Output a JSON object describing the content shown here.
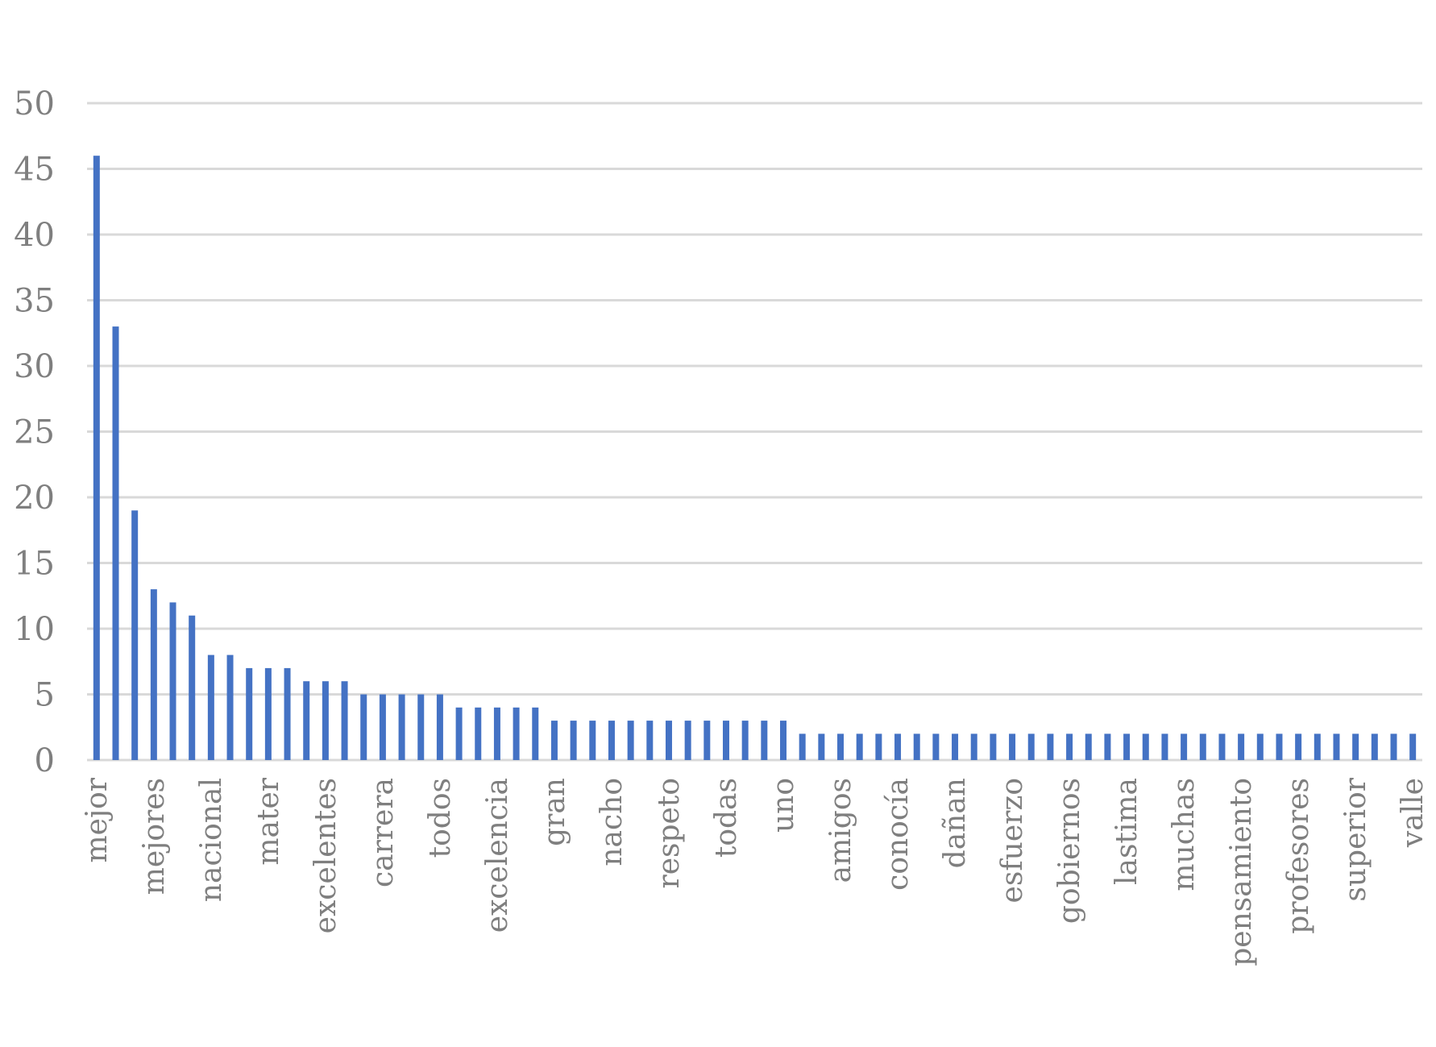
{
  "chart_data": {
    "type": "bar",
    "title": "",
    "xlabel": "",
    "ylabel": "",
    "ylim": [
      0,
      50
    ],
    "yticks": [
      0,
      5,
      10,
      15,
      20,
      25,
      30,
      35,
      40,
      45,
      50
    ],
    "grid": true,
    "legend": "none",
    "colors": {
      "bar": "#4472C4",
      "grid": "#d9d9d9",
      "tick_text": "#7f7f7f"
    },
    "values": [
      46,
      33,
      19,
      13,
      12,
      11,
      8,
      8,
      7,
      7,
      7,
      6,
      6,
      6,
      5,
      5,
      5,
      5,
      5,
      4,
      4,
      4,
      4,
      4,
      3,
      3,
      3,
      3,
      3,
      3,
      3,
      3,
      3,
      3,
      3,
      3,
      3,
      2,
      2,
      2,
      2,
      2,
      2,
      2,
      2,
      2,
      2,
      2,
      2,
      2,
      2,
      2,
      2,
      2,
      2,
      2,
      2,
      2,
      2,
      2,
      2,
      2,
      2,
      2,
      2,
      2,
      2,
      2,
      2,
      2
    ],
    "tick_labels": [
      {
        "index": 0,
        "text": "mejor"
      },
      {
        "index": 3,
        "text": "mejores"
      },
      {
        "index": 6,
        "text": "nacional"
      },
      {
        "index": 9,
        "text": "mater"
      },
      {
        "index": 12,
        "text": "excelentes"
      },
      {
        "index": 15,
        "text": "carrera"
      },
      {
        "index": 18,
        "text": "todos"
      },
      {
        "index": 21,
        "text": "excelencia"
      },
      {
        "index": 24,
        "text": "gran"
      },
      {
        "index": 27,
        "text": "nacho"
      },
      {
        "index": 30,
        "text": "respeto"
      },
      {
        "index": 33,
        "text": "todas"
      },
      {
        "index": 36,
        "text": "uno"
      },
      {
        "index": 39,
        "text": "amigos"
      },
      {
        "index": 42,
        "text": "conocía"
      },
      {
        "index": 45,
        "text": "dañan"
      },
      {
        "index": 48,
        "text": "esfuerzo"
      },
      {
        "index": 51,
        "text": "gobiernos"
      },
      {
        "index": 54,
        "text": "lastima"
      },
      {
        "index": 57,
        "text": "muchas"
      },
      {
        "index": 60,
        "text": "pensamiento"
      },
      {
        "index": 63,
        "text": "profesores"
      },
      {
        "index": 66,
        "text": "superior"
      },
      {
        "index": 69,
        "text": "valle"
      }
    ]
  }
}
